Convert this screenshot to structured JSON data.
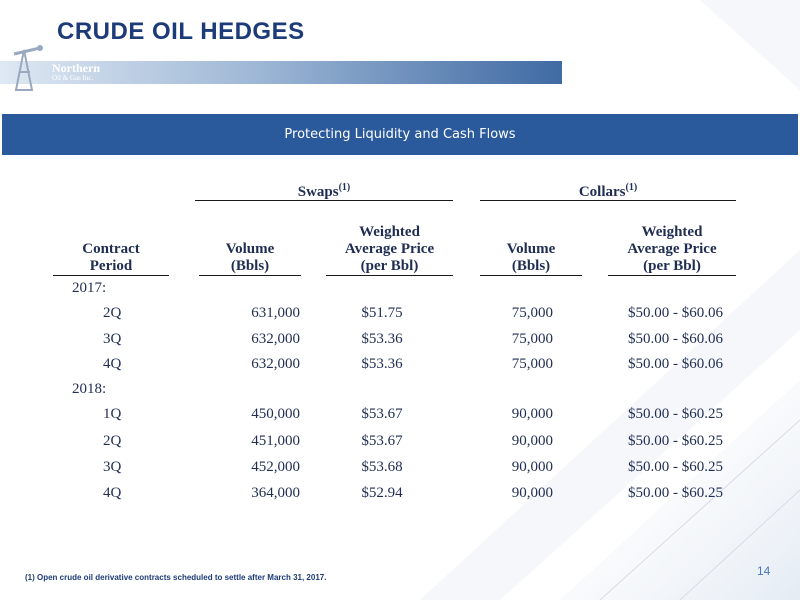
{
  "slide": {
    "title": "CRUDE OIL HEDGES",
    "banner": "Protecting Liquidity and Cash Flows",
    "page_number": "14",
    "footnote": "(1) Open crude oil derivative contracts scheduled to settle after March 31, 2017."
  },
  "logo": {
    "line1": "Northern",
    "line2": "Oil & Gas Inc."
  },
  "table": {
    "groups": {
      "swaps": {
        "label": "Swaps",
        "note": "(1)"
      },
      "collars": {
        "label": "Collars",
        "note": "(1)"
      }
    },
    "columns": {
      "period": [
        "Contract",
        "Period"
      ],
      "swap_volume": [
        "Volume",
        "(Bbls)"
      ],
      "swap_price": [
        "Weighted",
        "Average Price",
        "(per Bbl)"
      ],
      "collar_volume": [
        "Volume",
        "(Bbls)"
      ],
      "collar_price": [
        "Weighted",
        "Average Price",
        "(per Bbl)"
      ]
    },
    "rows": [
      {
        "type": "year",
        "label": "2017:"
      },
      {
        "type": "data",
        "period": "2Q",
        "swap_volume": "631,000",
        "swap_price": "$51.75",
        "collar_volume": "75,000",
        "collar_price": "$50.00 - $60.06"
      },
      {
        "type": "data",
        "period": "3Q",
        "swap_volume": "632,000",
        "swap_price": "$53.36",
        "collar_volume": "75,000",
        "collar_price": "$50.00 - $60.06"
      },
      {
        "type": "data",
        "period": "4Q",
        "swap_volume": "632,000",
        "swap_price": "$53.36",
        "collar_volume": "75,000",
        "collar_price": "$50.00 - $60.06"
      },
      {
        "type": "year",
        "label": "2018:"
      },
      {
        "type": "data",
        "period": "1Q",
        "swap_volume": "450,000",
        "swap_price": "$53.67",
        "collar_volume": "90,000",
        "collar_price": "$50.00 - $60.25"
      },
      {
        "type": "data",
        "period": "2Q",
        "swap_volume": "451,000",
        "swap_price": "$53.67",
        "collar_volume": "90,000",
        "collar_price": "$50.00 - $60.25"
      },
      {
        "type": "data",
        "period": "3Q",
        "swap_volume": "452,000",
        "swap_price": "$53.68",
        "collar_volume": "90,000",
        "collar_price": "$50.00 - $60.25"
      },
      {
        "type": "data",
        "period": "4Q",
        "swap_volume": "364,000",
        "swap_price": "$52.94",
        "collar_volume": "90,000",
        "collar_price": "$50.00 - $60.25"
      }
    ]
  }
}
